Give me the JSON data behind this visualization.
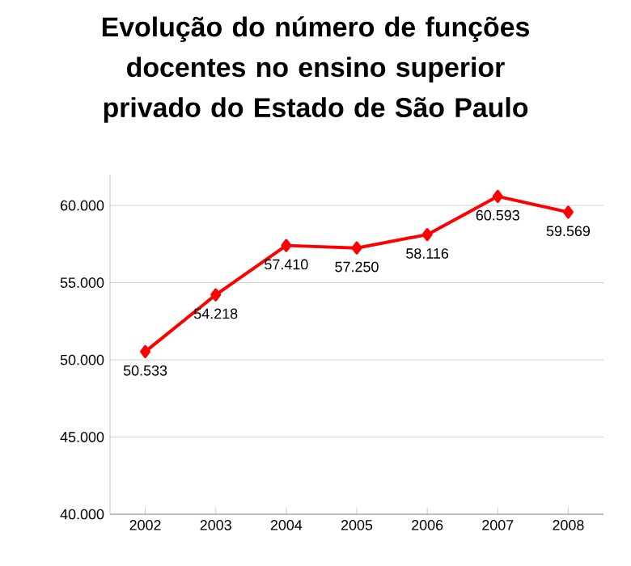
{
  "chart_data": {
    "type": "line",
    "title": "Evolução do número de funções docentes no ensino superior privado do Estado de São Paulo",
    "categories": [
      "2002",
      "2003",
      "2004",
      "2005",
      "2006",
      "2007",
      "2008"
    ],
    "values": [
      50533,
      54218,
      57410,
      57250,
      58116,
      60593,
      59569
    ],
    "value_labels": [
      "50.533",
      "54.218",
      "57.410",
      "57.250",
      "58.116",
      "60.593",
      "59.569"
    ],
    "color": "#ff0000",
    "marker": "diamond",
    "line_style": "solid",
    "grid": "y",
    "ylim": [
      40000,
      62000
    ],
    "yticks": [
      {
        "value": 40000,
        "label": "40.000"
      },
      {
        "value": 45000,
        "label": "45.000"
      },
      {
        "value": 50000,
        "label": "50.000"
      },
      {
        "value": 55000,
        "label": "55.000"
      },
      {
        "value": 60000,
        "label": "60.000"
      }
    ]
  }
}
